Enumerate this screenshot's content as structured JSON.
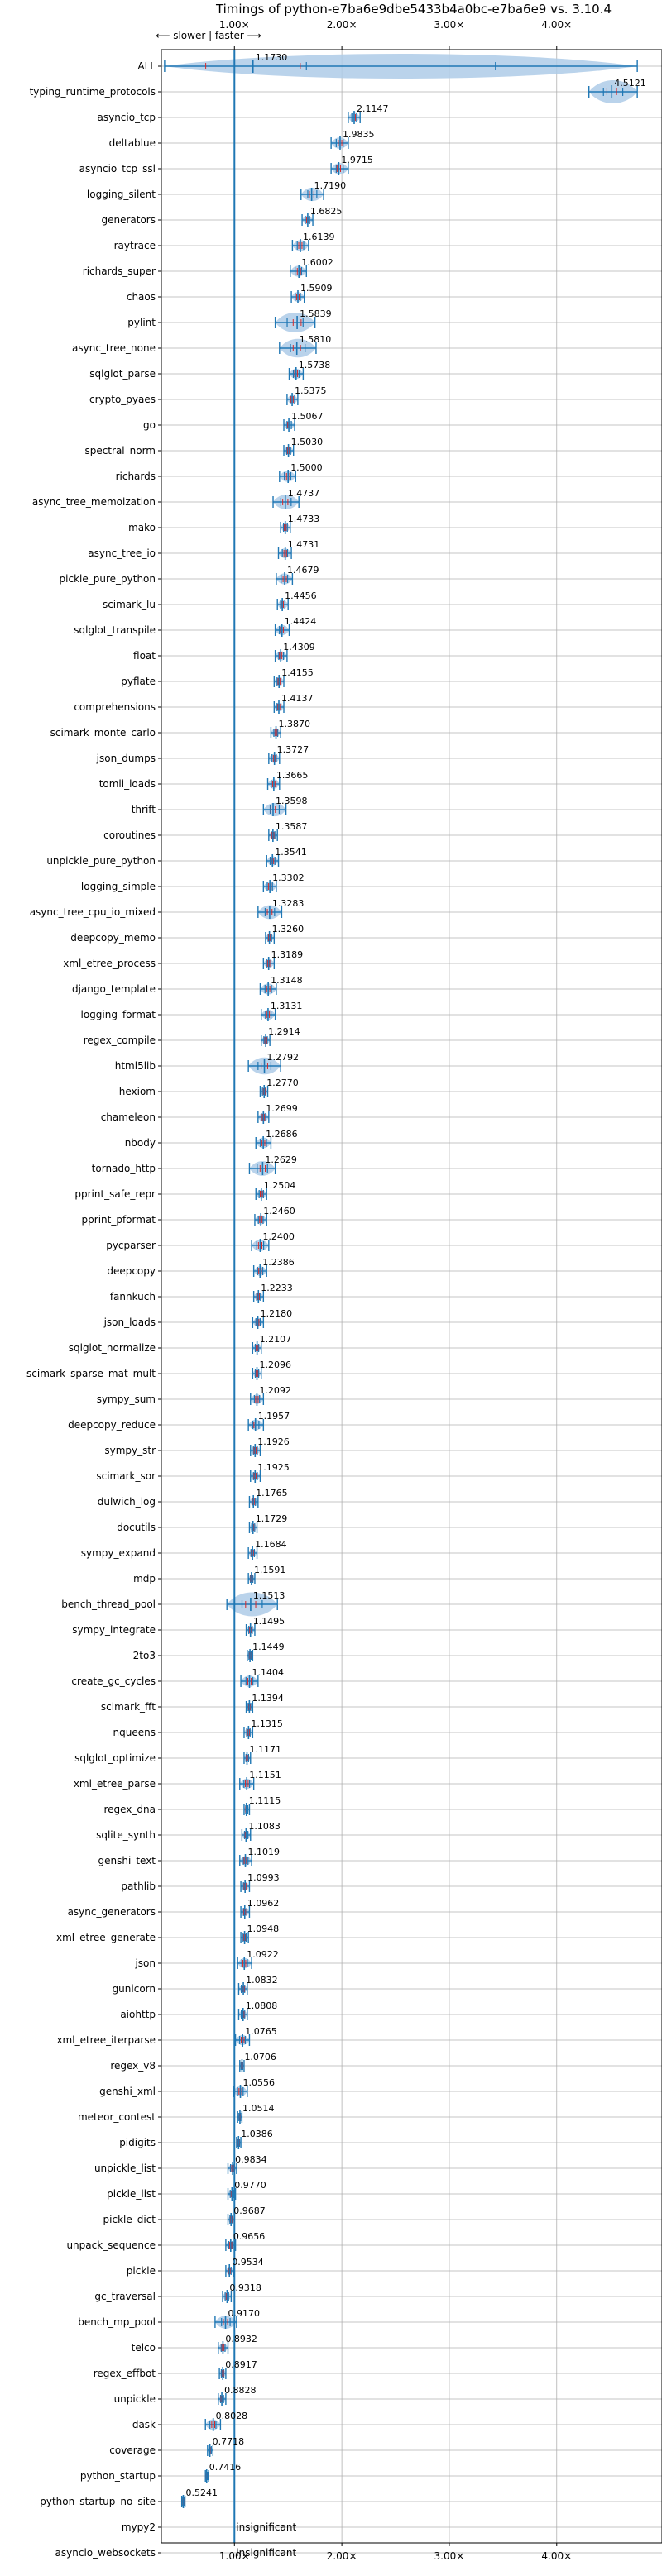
{
  "chart_data": {
    "type": "violin",
    "title": "Timings of python-e7ba6e9dbe5433b4a0bc-e7ba6e9 vs. 3.10.4",
    "direction_label": "⟵ slower | faster ⟶",
    "x_ticks": [
      1,
      2,
      3,
      4
    ],
    "x_tick_labels": [
      "1.00×",
      "2.00×",
      "3.00×",
      "4.00×"
    ],
    "xlim": [
      0.32,
      4.98
    ],
    "grid": true,
    "reference_line": 1.0,
    "colors": {
      "violin": "#aecbe8",
      "marker": "#1f77b4",
      "mean_ticks": "#d62728",
      "grid": "#b0b0b0"
    },
    "benchmarks": [
      {
        "name": "ALL",
        "value": 1.173,
        "low": 0.35,
        "high": 4.75,
        "label": "1.1730"
      },
      {
        "name": "typing_runtime_protocols",
        "value": 4.5121,
        "low": 4.3,
        "high": 4.75,
        "label": "4.5121"
      },
      {
        "name": "asyncio_tcp",
        "value": 2.1147,
        "low": 2.06,
        "high": 2.17,
        "label": "2.1147"
      },
      {
        "name": "deltablue",
        "value": 1.9835,
        "low": 1.9,
        "high": 2.06,
        "label": "1.9835"
      },
      {
        "name": "asyncio_tcp_ssl",
        "value": 1.9715,
        "low": 1.9,
        "high": 2.06,
        "label": "1.9715"
      },
      {
        "name": "logging_silent",
        "value": 1.719,
        "low": 1.62,
        "high": 1.83,
        "label": "1.7190"
      },
      {
        "name": "generators",
        "value": 1.6825,
        "low": 1.63,
        "high": 1.73,
        "label": "1.6825"
      },
      {
        "name": "raytrace",
        "value": 1.6139,
        "low": 1.54,
        "high": 1.69,
        "label": "1.6139"
      },
      {
        "name": "richards_super",
        "value": 1.6002,
        "low": 1.52,
        "high": 1.67,
        "label": "1.6002"
      },
      {
        "name": "chaos",
        "value": 1.5909,
        "low": 1.53,
        "high": 1.65,
        "label": "1.5909"
      },
      {
        "name": "pylint",
        "value": 1.5839,
        "low": 1.38,
        "high": 1.75,
        "label": "1.5839"
      },
      {
        "name": "async_tree_none",
        "value": 1.581,
        "low": 1.42,
        "high": 1.76,
        "label": "1.5810"
      },
      {
        "name": "sqlglot_parse",
        "value": 1.5738,
        "low": 1.51,
        "high": 1.64,
        "label": "1.5738"
      },
      {
        "name": "crypto_pyaes",
        "value": 1.5375,
        "low": 1.49,
        "high": 1.59,
        "label": "1.5375"
      },
      {
        "name": "go",
        "value": 1.5067,
        "low": 1.46,
        "high": 1.56,
        "label": "1.5067"
      },
      {
        "name": "spectral_norm",
        "value": 1.503,
        "low": 1.46,
        "high": 1.55,
        "label": "1.5030"
      },
      {
        "name": "richards",
        "value": 1.5,
        "low": 1.42,
        "high": 1.57,
        "label": "1.5000"
      },
      {
        "name": "async_tree_memoization",
        "value": 1.4737,
        "low": 1.36,
        "high": 1.6,
        "label": "1.4737"
      },
      {
        "name": "mako",
        "value": 1.4733,
        "low": 1.43,
        "high": 1.52,
        "label": "1.4733"
      },
      {
        "name": "async_tree_io",
        "value": 1.4731,
        "low": 1.41,
        "high": 1.53,
        "label": "1.4731"
      },
      {
        "name": "pickle_pure_python",
        "value": 1.4679,
        "low": 1.39,
        "high": 1.54,
        "label": "1.4679"
      },
      {
        "name": "scimark_lu",
        "value": 1.4456,
        "low": 1.4,
        "high": 1.5,
        "label": "1.4456"
      },
      {
        "name": "sqlglot_transpile",
        "value": 1.4424,
        "low": 1.38,
        "high": 1.51,
        "label": "1.4424"
      },
      {
        "name": "float",
        "value": 1.4309,
        "low": 1.38,
        "high": 1.49,
        "label": "1.4309"
      },
      {
        "name": "pyflate",
        "value": 1.4155,
        "low": 1.37,
        "high": 1.46,
        "label": "1.4155"
      },
      {
        "name": "comprehensions",
        "value": 1.4137,
        "low": 1.37,
        "high": 1.46,
        "label": "1.4137"
      },
      {
        "name": "scimark_monte_carlo",
        "value": 1.387,
        "low": 1.34,
        "high": 1.43,
        "label": "1.3870"
      },
      {
        "name": "json_dumps",
        "value": 1.3727,
        "low": 1.32,
        "high": 1.42,
        "label": "1.3727"
      },
      {
        "name": "tomli_loads",
        "value": 1.3665,
        "low": 1.31,
        "high": 1.42,
        "label": "1.3665"
      },
      {
        "name": "thrift",
        "value": 1.3598,
        "low": 1.27,
        "high": 1.48,
        "label": "1.3598"
      },
      {
        "name": "coroutines",
        "value": 1.3587,
        "low": 1.32,
        "high": 1.4,
        "label": "1.3587"
      },
      {
        "name": "unpickle_pure_python",
        "value": 1.3541,
        "low": 1.3,
        "high": 1.41,
        "label": "1.3541"
      },
      {
        "name": "logging_simple",
        "value": 1.3302,
        "low": 1.27,
        "high": 1.39,
        "label": "1.3302"
      },
      {
        "name": "async_tree_cpu_io_mixed",
        "value": 1.3283,
        "low": 1.22,
        "high": 1.44,
        "label": "1.3283"
      },
      {
        "name": "deepcopy_memo",
        "value": 1.326,
        "low": 1.29,
        "high": 1.37,
        "label": "1.3260"
      },
      {
        "name": "xml_etree_process",
        "value": 1.3189,
        "low": 1.27,
        "high": 1.37,
        "label": "1.3189"
      },
      {
        "name": "django_template",
        "value": 1.3148,
        "low": 1.24,
        "high": 1.39,
        "label": "1.3148"
      },
      {
        "name": "logging_format",
        "value": 1.3131,
        "low": 1.25,
        "high": 1.38,
        "label": "1.3131"
      },
      {
        "name": "regex_compile",
        "value": 1.2914,
        "low": 1.25,
        "high": 1.33,
        "label": "1.2914"
      },
      {
        "name": "html5lib",
        "value": 1.2792,
        "low": 1.13,
        "high": 1.43,
        "label": "1.2792"
      },
      {
        "name": "hexiom",
        "value": 1.277,
        "low": 1.24,
        "high": 1.31,
        "label": "1.2770"
      },
      {
        "name": "chameleon",
        "value": 1.2699,
        "low": 1.22,
        "high": 1.32,
        "label": "1.2699"
      },
      {
        "name": "nbody",
        "value": 1.2686,
        "low": 1.2,
        "high": 1.34,
        "label": "1.2686"
      },
      {
        "name": "tornado_http",
        "value": 1.2629,
        "low": 1.14,
        "high": 1.38,
        "label": "1.2629"
      },
      {
        "name": "pprint_safe_repr",
        "value": 1.2504,
        "low": 1.2,
        "high": 1.3,
        "label": "1.2504"
      },
      {
        "name": "pprint_pformat",
        "value": 1.246,
        "low": 1.19,
        "high": 1.3,
        "label": "1.2460"
      },
      {
        "name": "pycparser",
        "value": 1.24,
        "low": 1.16,
        "high": 1.32,
        "label": "1.2400"
      },
      {
        "name": "deepcopy",
        "value": 1.2386,
        "low": 1.18,
        "high": 1.3,
        "label": "1.2386"
      },
      {
        "name": "fannkuch",
        "value": 1.2233,
        "low": 1.18,
        "high": 1.27,
        "label": "1.2233"
      },
      {
        "name": "json_loads",
        "value": 1.218,
        "low": 1.17,
        "high": 1.27,
        "label": "1.2180"
      },
      {
        "name": "sqlglot_normalize",
        "value": 1.2107,
        "low": 1.17,
        "high": 1.25,
        "label": "1.2107"
      },
      {
        "name": "scimark_sparse_mat_mult",
        "value": 1.2096,
        "low": 1.17,
        "high": 1.25,
        "label": "1.2096"
      },
      {
        "name": "sympy_sum",
        "value": 1.2092,
        "low": 1.15,
        "high": 1.27,
        "label": "1.2092"
      },
      {
        "name": "deepcopy_reduce",
        "value": 1.1957,
        "low": 1.13,
        "high": 1.27,
        "label": "1.1957"
      },
      {
        "name": "sympy_str",
        "value": 1.1926,
        "low": 1.15,
        "high": 1.24,
        "label": "1.1926"
      },
      {
        "name": "scimark_sor",
        "value": 1.1925,
        "low": 1.15,
        "high": 1.24,
        "label": "1.1925"
      },
      {
        "name": "dulwich_log",
        "value": 1.1765,
        "low": 1.14,
        "high": 1.22,
        "label": "1.1765"
      },
      {
        "name": "docutils",
        "value": 1.1729,
        "low": 1.14,
        "high": 1.21,
        "label": "1.1729"
      },
      {
        "name": "sympy_expand",
        "value": 1.1684,
        "low": 1.13,
        "high": 1.21,
        "label": "1.1684"
      },
      {
        "name": "mdp",
        "value": 1.1591,
        "low": 1.13,
        "high": 1.19,
        "label": "1.1591"
      },
      {
        "name": "bench_thread_pool",
        "value": 1.1513,
        "low": 0.93,
        "high": 1.4,
        "label": "1.1513"
      },
      {
        "name": "sympy_integrate",
        "value": 1.1495,
        "low": 1.11,
        "high": 1.19,
        "label": "1.1495"
      },
      {
        "name": "2to3",
        "value": 1.1449,
        "low": 1.12,
        "high": 1.17,
        "label": "1.1449"
      },
      {
        "name": "create_gc_cycles",
        "value": 1.1404,
        "low": 1.06,
        "high": 1.22,
        "label": "1.1404"
      },
      {
        "name": "scimark_fft",
        "value": 1.1394,
        "low": 1.11,
        "high": 1.17,
        "label": "1.1394"
      },
      {
        "name": "nqueens",
        "value": 1.1315,
        "low": 1.09,
        "high": 1.17,
        "label": "1.1315"
      },
      {
        "name": "sqlglot_optimize",
        "value": 1.1171,
        "low": 1.09,
        "high": 1.15,
        "label": "1.1171"
      },
      {
        "name": "xml_etree_parse",
        "value": 1.1151,
        "low": 1.05,
        "high": 1.18,
        "label": "1.1151"
      },
      {
        "name": "regex_dna",
        "value": 1.1115,
        "low": 1.09,
        "high": 1.14,
        "label": "1.1115"
      },
      {
        "name": "sqlite_synth",
        "value": 1.1083,
        "low": 1.07,
        "high": 1.15,
        "label": "1.1083"
      },
      {
        "name": "genshi_text",
        "value": 1.1019,
        "low": 1.05,
        "high": 1.16,
        "label": "1.1019"
      },
      {
        "name": "pathlib",
        "value": 1.0993,
        "low": 1.06,
        "high": 1.14,
        "label": "1.0993"
      },
      {
        "name": "async_generators",
        "value": 1.0962,
        "low": 1.06,
        "high": 1.14,
        "label": "1.0962"
      },
      {
        "name": "xml_etree_generate",
        "value": 1.0948,
        "low": 1.06,
        "high": 1.13,
        "label": "1.0948"
      },
      {
        "name": "json",
        "value": 1.0922,
        "low": 1.03,
        "high": 1.16,
        "label": "1.0922"
      },
      {
        "name": "gunicorn",
        "value": 1.0832,
        "low": 1.04,
        "high": 1.12,
        "label": "1.0832"
      },
      {
        "name": "aiohttp",
        "value": 1.0808,
        "low": 1.04,
        "high": 1.12,
        "label": "1.0808"
      },
      {
        "name": "xml_etree_iterparse",
        "value": 1.0765,
        "low": 1.01,
        "high": 1.14,
        "label": "1.0765"
      },
      {
        "name": "regex_v8",
        "value": 1.0706,
        "low": 1.05,
        "high": 1.09,
        "label": "1.0706"
      },
      {
        "name": "genshi_xml",
        "value": 1.0556,
        "low": 0.99,
        "high": 1.12,
        "label": "1.0556"
      },
      {
        "name": "meteor_contest",
        "value": 1.0514,
        "low": 1.03,
        "high": 1.07,
        "label": "1.0514"
      },
      {
        "name": "pidigits",
        "value": 1.0386,
        "low": 1.02,
        "high": 1.06,
        "label": "1.0386"
      },
      {
        "name": "unpickle_list",
        "value": 0.9834,
        "low": 0.94,
        "high": 1.02,
        "label": "0.9834"
      },
      {
        "name": "pickle_list",
        "value": 0.977,
        "low": 0.94,
        "high": 1.01,
        "label": "0.9770"
      },
      {
        "name": "pickle_dict",
        "value": 0.9687,
        "low": 0.94,
        "high": 1.0,
        "label": "0.9687"
      },
      {
        "name": "unpack_sequence",
        "value": 0.9656,
        "low": 0.92,
        "high": 1.01,
        "label": "0.9656"
      },
      {
        "name": "pickle",
        "value": 0.9534,
        "low": 0.92,
        "high": 0.99,
        "label": "0.9534"
      },
      {
        "name": "gc_traversal",
        "value": 0.9318,
        "low": 0.89,
        "high": 0.97,
        "label": "0.9318"
      },
      {
        "name": "bench_mp_pool",
        "value": 0.917,
        "low": 0.82,
        "high": 1.02,
        "label": "0.9170"
      },
      {
        "name": "telco",
        "value": 0.8932,
        "low": 0.85,
        "high": 0.94,
        "label": "0.8932"
      },
      {
        "name": "regex_effbot",
        "value": 0.8917,
        "low": 0.86,
        "high": 0.92,
        "label": "0.8917"
      },
      {
        "name": "unpickle",
        "value": 0.8828,
        "low": 0.85,
        "high": 0.92,
        "label": "0.8828"
      },
      {
        "name": "dask",
        "value": 0.8028,
        "low": 0.73,
        "high": 0.87,
        "label": "0.8028"
      },
      {
        "name": "coverage",
        "value": 0.7718,
        "low": 0.75,
        "high": 0.8,
        "label": "0.7718"
      },
      {
        "name": "python_startup",
        "value": 0.7416,
        "low": 0.73,
        "high": 0.76,
        "label": "0.7416"
      },
      {
        "name": "python_startup_no_site",
        "value": 0.5241,
        "low": 0.51,
        "high": 0.54,
        "label": "0.5241"
      },
      {
        "name": "mypy2",
        "value": null,
        "low": null,
        "high": null,
        "label": "insignificant"
      },
      {
        "name": "asyncio_websockets",
        "value": null,
        "low": null,
        "high": null,
        "label": "insignificant"
      }
    ]
  }
}
